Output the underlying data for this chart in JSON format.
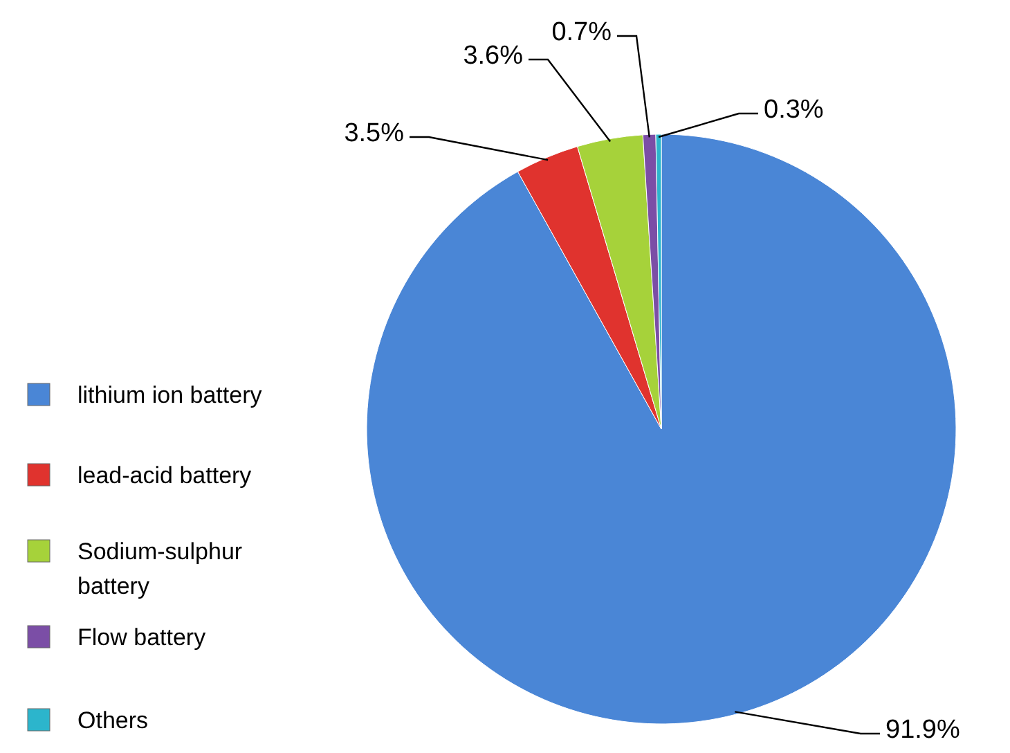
{
  "chart_data": {
    "type": "pie",
    "categories": [
      "lithium ion battery",
      "lead-acid battery",
      "Sodium-sulphur battery",
      "Flow battery",
      "Others"
    ],
    "values": [
      91.9,
      3.5,
      3.6,
      0.7,
      0.3
    ],
    "value_labels": [
      "91.9%",
      "3.5%",
      "3.6%",
      "0.7%",
      "0.3%"
    ],
    "colors": [
      "#4a86d6",
      "#e0332e",
      "#a6d23a",
      "#7b4ea6",
      "#2cb5cc"
    ],
    "legend": "left"
  }
}
